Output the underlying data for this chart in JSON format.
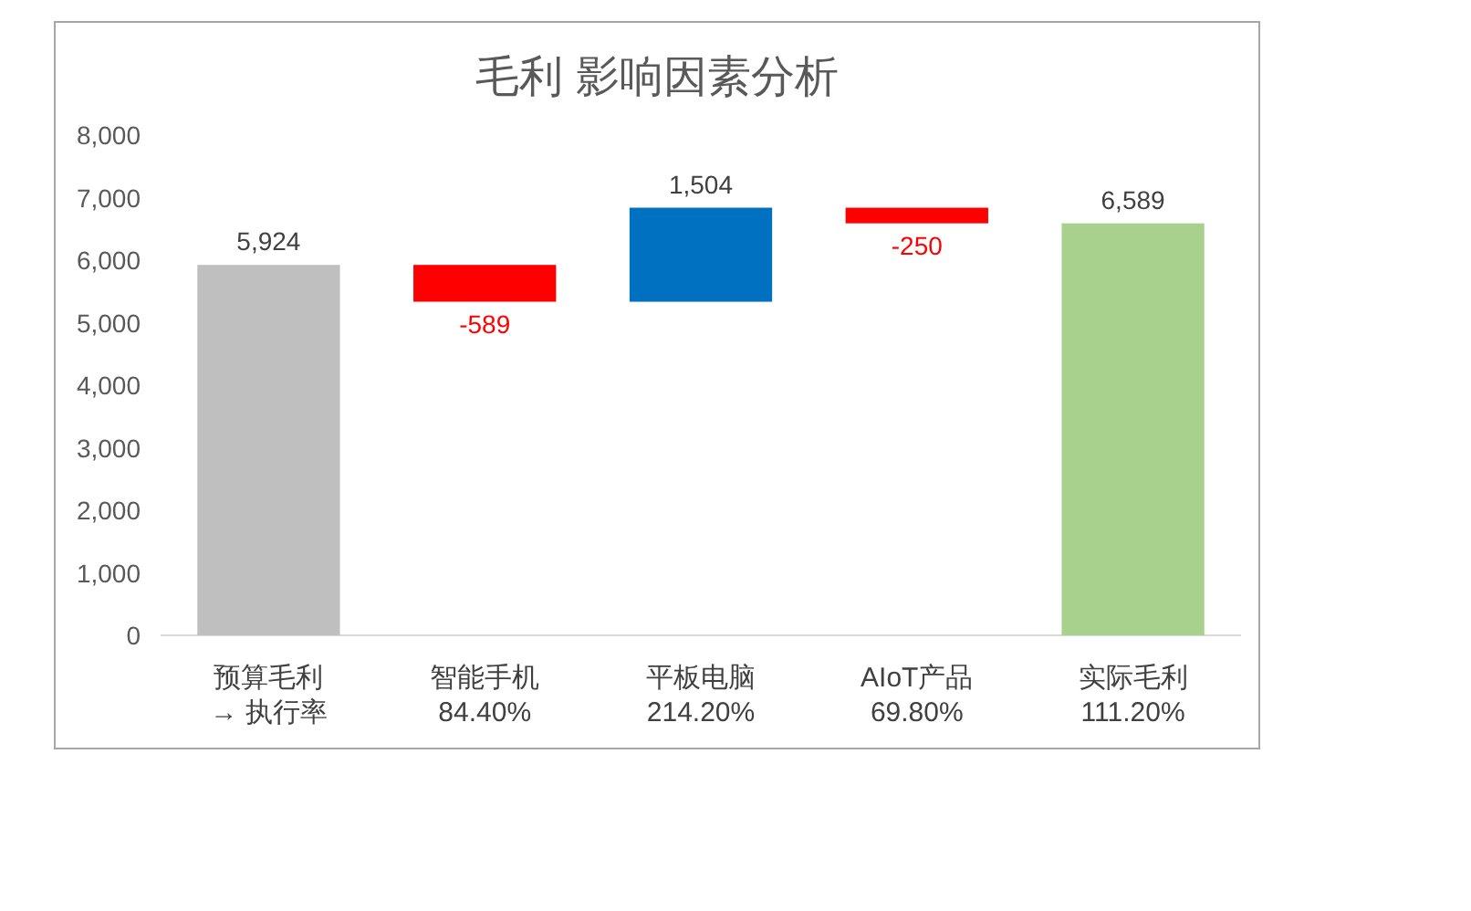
{
  "chart_data": {
    "type": "bar",
    "title": "毛利 影响因素分析",
    "categories": [
      "预算毛利\n→ 执行率",
      "智能手机\n84.40%",
      "平板电脑\n214.20%",
      "AIoT产品\n69.80%",
      "实际毛利\n111.20%"
    ],
    "values": [
      5924,
      -589,
      1504,
      -250,
      6589
    ],
    "base": [
      0,
      5924,
      5335,
      6839,
      0
    ],
    "colors": [
      "#bfbfbf",
      "#ff0000",
      "#0070c0",
      "#ff0000",
      "#a9d18e"
    ],
    "value_labels": [
      "5,924",
      "-589",
      "1,504",
      "-250",
      "6,589"
    ],
    "ylim": [
      0,
      8000
    ],
    "yticks": [
      {
        "value": 0,
        "label": "0"
      },
      {
        "value": 1000,
        "label": "1,000"
      },
      {
        "value": 2000,
        "label": "2,000"
      },
      {
        "value": 3000,
        "label": "3,000"
      },
      {
        "value": 4000,
        "label": "4,000"
      },
      {
        "value": 5000,
        "label": "5,000"
      },
      {
        "value": 6000,
        "label": "6,000"
      },
      {
        "value": 7000,
        "label": "7,000"
      },
      {
        "value": 8000,
        "label": "8,000"
      }
    ],
    "grid": false
  }
}
